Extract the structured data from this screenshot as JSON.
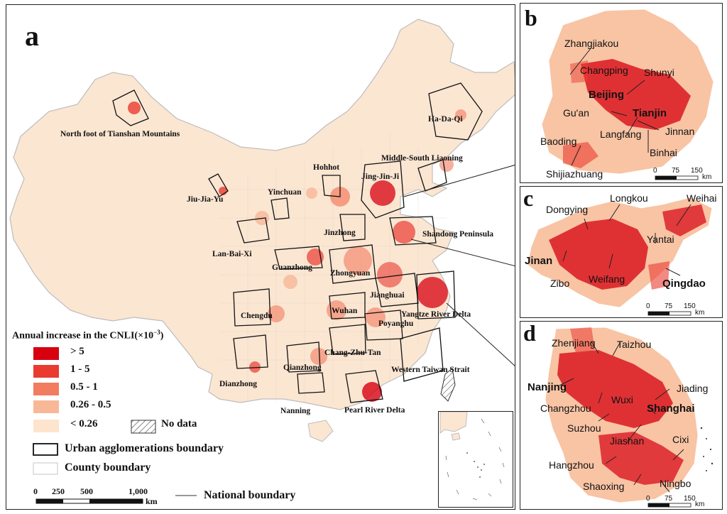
{
  "panel_a": {
    "letter": "a",
    "agglomerations": [
      "North foot of Tianshan Mountains",
      "Jiu-Jia-Yu",
      "Lan-Bai-Xi",
      "Yinchuan",
      "Hohhot",
      "Jing-Jin-Ji",
      "Middle-South Liaoning",
      "Ha-Da-Qi",
      "Shandong Peninsula",
      "Jinzhong",
      "Guanzhong",
      "Zhongyuan",
      "Jianghuai",
      "Wuhan",
      "Yangtze River Delta",
      "Chengdu",
      "Poyanghu",
      "Chang-Zhu-Tan",
      "Qianzhong",
      "Western Taiwan Strait",
      "Dianzhong",
      "Nanning",
      "Pearl River Delta"
    ],
    "legend": {
      "title": "Annual increase in the CNLI(×10",
      "title_exp": "−3",
      "title_end": ")",
      "classes": [
        {
          "label": "> 5",
          "color": "#d7000f"
        },
        {
          "label": "1 - 5",
          "color": "#ea3b30"
        },
        {
          "label": "0.5 - 1",
          "color": "#f27c5f"
        },
        {
          "label": "0.26 - 0.5",
          "color": "#f8b898"
        },
        {
          "label": "< 0.26",
          "color": "#fde4cc"
        }
      ],
      "no_data": "No data",
      "boundaries": [
        {
          "label": "Urban agglomerations boundary",
          "style": "black-outline"
        },
        {
          "label": "County boundary",
          "style": "grey-outline"
        },
        {
          "label": "National boundary",
          "style": "grey-line"
        }
      ]
    },
    "scale": {
      "ticks": [
        "0",
        "250",
        "500",
        "1,000"
      ],
      "unit": "km"
    }
  },
  "panel_b": {
    "letter": "b",
    "cities": [
      "Zhangjiakou",
      "Changping",
      "Shunyi",
      "Beijing",
      "Gu'an",
      "Tianjin",
      "Jinnan",
      "Langfang",
      "Baoding",
      "Binhai",
      "Shijiazhuang"
    ],
    "scale": {
      "ticks": [
        "0",
        "75",
        "150"
      ],
      "unit": "km"
    }
  },
  "panel_c": {
    "letter": "c",
    "cities": [
      "Longkou",
      "Weihai",
      "Dongying",
      "Yantai",
      "Jinan",
      "Zibo",
      "Weifang",
      "Qingdao"
    ],
    "scale": {
      "ticks": [
        "0",
        "75",
        "150"
      ],
      "unit": "km"
    }
  },
  "panel_d": {
    "letter": "d",
    "cities": [
      "Zhenjiang",
      "Taizhou",
      "Nanjing",
      "Jiading",
      "Changzhou",
      "Wuxi",
      "Shanghai",
      "Suzhou",
      "Jiashan",
      "Cixi",
      "Hangzhou",
      "Shaoxing",
      "Ningbo"
    ],
    "scale": {
      "ticks": [
        "0",
        "75",
        "150"
      ],
      "unit": "km"
    }
  }
}
